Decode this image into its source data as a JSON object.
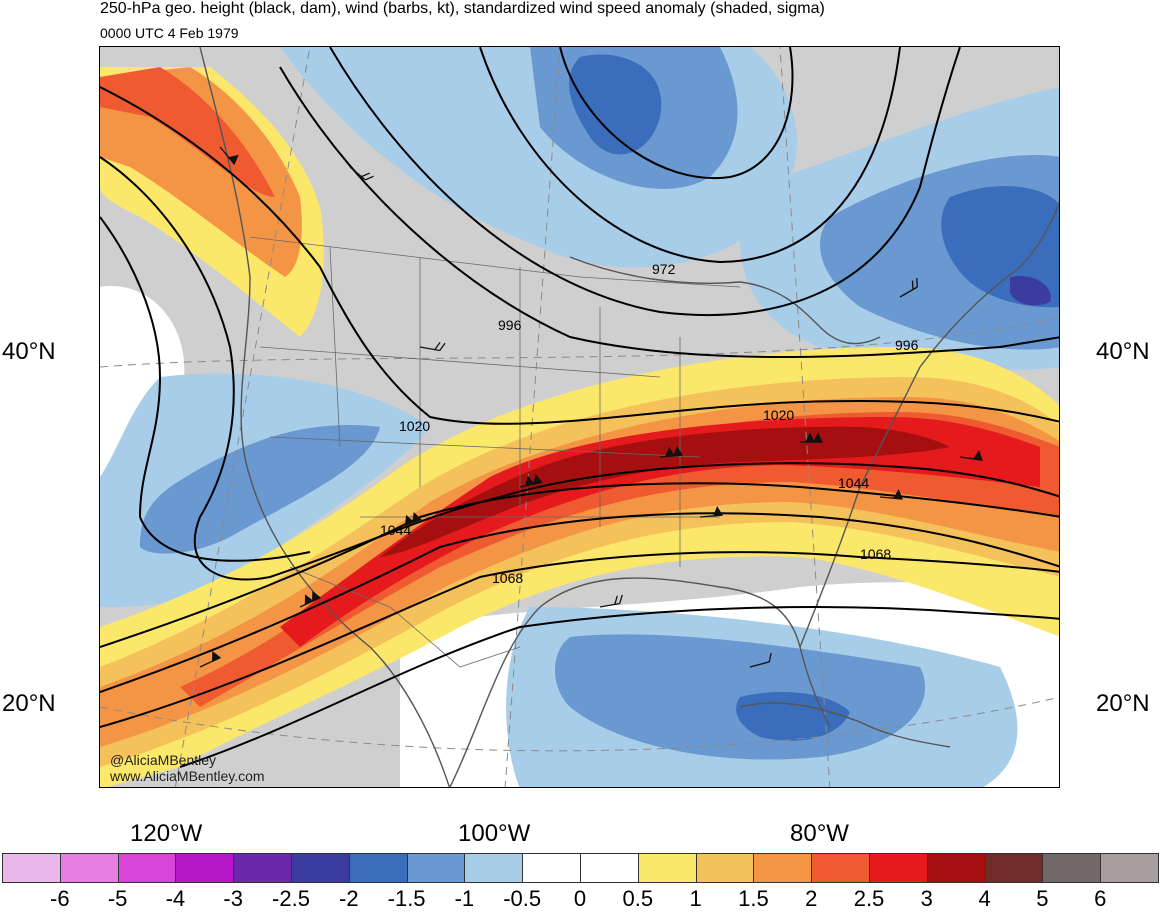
{
  "title": "250-hPa geo. height (black, dam), wind (barbs, kt), standardized wind speed anomaly (shaded, sigma)",
  "subtitle": "0000 UTC 4 Feb 1979",
  "latitude_labels": [
    "40°N",
    "20°N"
  ],
  "longitude_labels": [
    "120°W",
    "100°W",
    "80°W"
  ],
  "contour_labels": [
    "972",
    "996",
    "996",
    "1020",
    "1020",
    "1044",
    "1044",
    "1068",
    "1068"
  ],
  "credit": {
    "handle": "@AliciaMBentley",
    "website": "www.AliciaMBentley.com"
  },
  "colorbar": {
    "colors": [
      "#e9b7e9",
      "#e57fe5",
      "#d845d8",
      "#b418c8",
      "#6b28a8",
      "#3c3ca0",
      "#3a6ebc",
      "#6a98d0",
      "#a8cde8",
      "#ffffff",
      "#ffffff",
      "#fbe86b",
      "#f5c15b",
      "#f39545",
      "#ef5a30",
      "#e41a1c",
      "#a50f0f",
      "#722b2b",
      "#736868",
      "#a89c9c"
    ],
    "tick_labels": [
      "-6",
      "-5",
      "-4",
      "-3",
      "-2.5",
      "-2",
      "-1.5",
      "-1",
      "-0.5",
      "0",
      "0.5",
      "1",
      "1.5",
      "2",
      "2.5",
      "3",
      "4",
      "5",
      "6"
    ]
  }
}
